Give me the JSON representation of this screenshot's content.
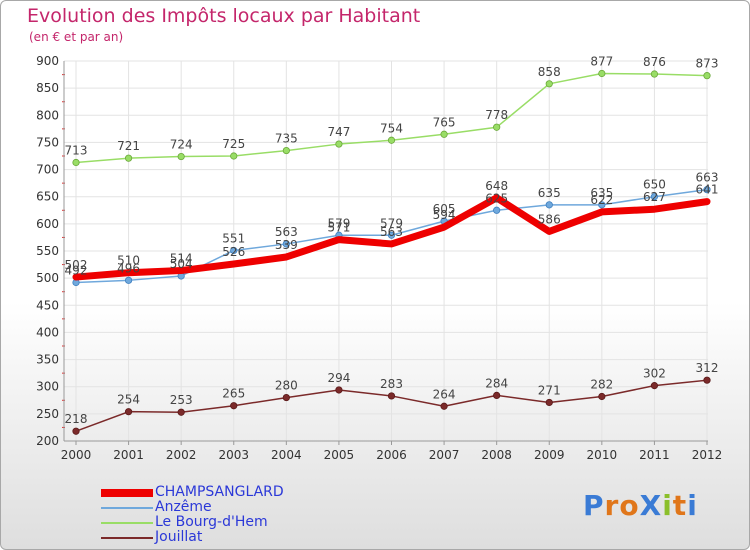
{
  "header": {
    "title": "Evolution des Impôts locaux par Habitant",
    "subtitle": "(en € et par an)"
  },
  "logo": {
    "text": "ProXiti",
    "letter_colors": [
      "#3a7bd5",
      "#e0761a",
      "#e0761a",
      "#3a7bd5",
      "#8bbf2b",
      "#e0761a",
      "#3a7bd5"
    ]
  },
  "chart_data": {
    "type": "line",
    "x": [
      "2000",
      "2001",
      "2002",
      "2003",
      "2004",
      "2005",
      "2006",
      "2007",
      "2008",
      "2009",
      "2010",
      "2011",
      "2012"
    ],
    "ylim": [
      200,
      900
    ],
    "yticks": [
      "200",
      "250",
      "300",
      "350",
      "400",
      "450",
      "500",
      "550",
      "600",
      "650",
      "700",
      "750",
      "800",
      "850",
      "900"
    ],
    "grid": true,
    "legend_position": "bottom-left",
    "series": [
      {
        "name": "CHAMPSANGLARD",
        "color": "#ee0000",
        "values": [
          502,
          510,
          514,
          526,
          539,
          571,
          563,
          594,
          648,
          586,
          622,
          627,
          641
        ],
        "labels": [
          "502",
          "510",
          "514",
          "526",
          "539",
          "571",
          "563",
          "594",
          "648",
          "586",
          "622",
          "627",
          "641"
        ]
      },
      {
        "name": "Anzême",
        "color": "#6fa8dc",
        "values": [
          492,
          496,
          504,
          551,
          563,
          579,
          579,
          605,
          625,
          635,
          635,
          650,
          663
        ],
        "labels": [
          "492",
          "496",
          "504",
          "551",
          "563",
          "579",
          "579",
          "605",
          "625",
          "635",
          "635",
          "650",
          "663"
        ]
      },
      {
        "name": "Le Bourg-d'Hem",
        "color": "#99dd66",
        "values": [
          713,
          721,
          724,
          725,
          735,
          747,
          754,
          765,
          778,
          858,
          877,
          876,
          873
        ],
        "labels": [
          "713",
          "721",
          "724",
          "725",
          "735",
          "747",
          "754",
          "765",
          "778",
          "858",
          "877",
          "876",
          "873"
        ]
      },
      {
        "name": "Jouillat",
        "color": "#7b2a2a",
        "values": [
          218,
          254,
          253,
          265,
          280,
          294,
          283,
          264,
          284,
          271,
          282,
          302,
          312
        ],
        "labels": [
          "218",
          "254",
          "253",
          "265",
          "280",
          "294",
          "283",
          "264",
          "284",
          "271",
          "282",
          "302",
          "312"
        ]
      }
    ]
  }
}
